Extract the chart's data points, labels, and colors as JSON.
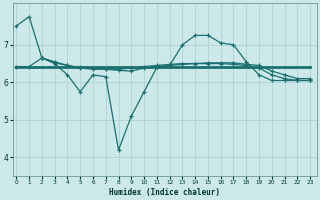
{
  "xlabel": "Humidex (Indice chaleur)",
  "bg_color": "#cce8e8",
  "grid_color": "#aacfcf",
  "line_color": "#1a7070",
  "x_ticks": [
    0,
    1,
    2,
    3,
    4,
    5,
    6,
    7,
    8,
    9,
    10,
    11,
    12,
    13,
    14,
    15,
    16,
    17,
    18,
    19,
    20,
    21,
    22,
    23
  ],
  "y_ticks": [
    4,
    5,
    6,
    7
  ],
  "ylim": [
    3.5,
    8.1
  ],
  "xlim": [
    -0.3,
    23.5
  ],
  "line1_x": [
    0,
    1,
    2,
    3,
    4,
    5,
    6,
    7,
    8,
    9,
    10,
    11,
    12,
    13,
    14,
    15,
    16,
    17,
    18,
    19,
    20,
    21,
    22,
    23
  ],
  "line1_y": [
    7.5,
    7.75,
    6.65,
    6.5,
    6.2,
    5.75,
    6.2,
    6.15,
    4.2,
    5.1,
    5.75,
    6.4,
    6.45,
    7.0,
    7.25,
    7.25,
    7.05,
    7.0,
    6.55,
    6.2,
    6.05,
    6.05,
    6.05,
    6.05
  ],
  "line2_x": [
    0,
    23
  ],
  "line2_y": [
    6.42,
    6.42
  ],
  "line3_x": [
    0,
    1,
    2,
    3,
    4,
    5,
    6,
    7,
    8,
    9,
    10,
    11,
    12,
    13,
    14,
    15,
    16,
    17,
    18,
    19,
    20,
    21,
    22,
    23
  ],
  "line3_y": [
    6.42,
    6.42,
    6.65,
    6.55,
    6.45,
    6.4,
    6.38,
    6.35,
    6.32,
    6.3,
    6.38,
    6.42,
    6.45,
    6.48,
    6.5,
    6.52,
    6.52,
    6.52,
    6.48,
    6.45,
    6.3,
    6.2,
    6.1,
    6.1
  ],
  "line4_x": [
    2,
    3,
    4,
    5,
    6,
    7,
    8,
    9,
    10,
    11,
    12,
    13,
    14,
    15,
    16,
    17,
    18,
    19,
    20,
    21,
    22,
    23
  ],
  "line4_y": [
    6.65,
    6.52,
    6.45,
    6.38,
    6.35,
    6.35,
    6.35,
    6.38,
    6.42,
    6.45,
    6.48,
    6.5,
    6.5,
    6.5,
    6.5,
    6.48,
    6.45,
    6.38,
    6.2,
    6.1,
    6.05,
    6.05
  ]
}
